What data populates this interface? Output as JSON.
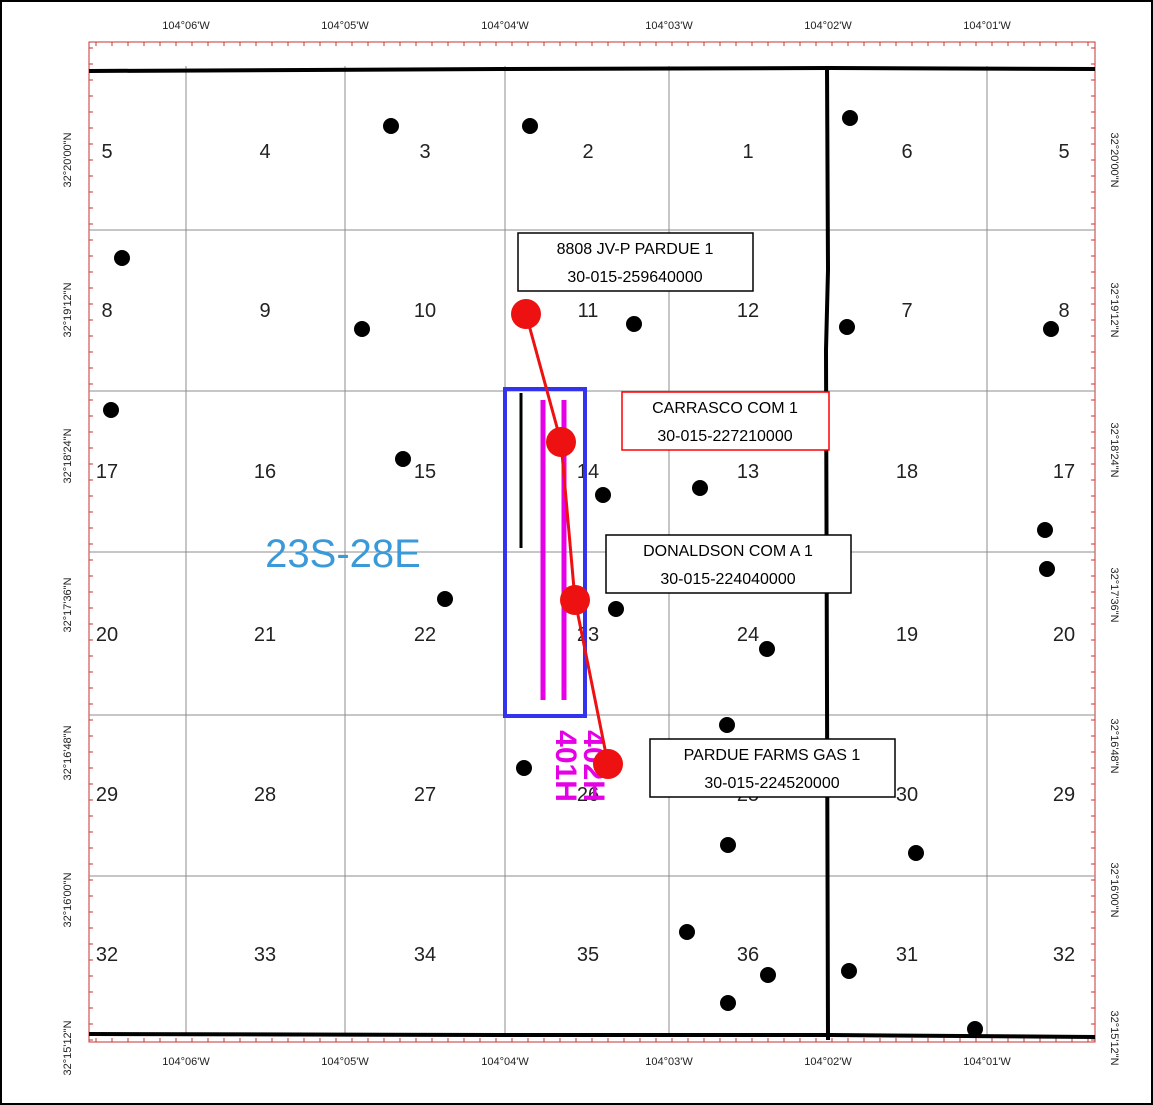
{
  "map": {
    "township_label": "23S-28E",
    "longitude_labels": [
      "104°06'W",
      "104°05'W",
      "104°04'W",
      "104°03'W",
      "104°02'W",
      "104°01'W"
    ],
    "latitude_labels": [
      "32°20'00\"N",
      "32°19'12\"N",
      "32°18'24\"N",
      "32°17'36\"N",
      "32°16'48\"N",
      "32°16'00\"N",
      "32°15'12\"N"
    ],
    "section_numbers": [
      "5",
      "4",
      "3",
      "2",
      "1",
      "6",
      "5",
      "8",
      "9",
      "10",
      "11",
      "12",
      "7",
      "8",
      "17",
      "16",
      "15",
      "14",
      "13",
      "18",
      "17",
      "20",
      "21",
      "22",
      "23",
      "24",
      "19",
      "20",
      "29",
      "28",
      "27",
      "26",
      "25",
      "30",
      "29",
      "32",
      "33",
      "34",
      "35",
      "36",
      "31",
      "32"
    ],
    "lateral_labels": [
      "401H",
      "402H"
    ],
    "wells": [
      {
        "name": "8808 JV-P PARDUE 1",
        "api": "30-015-259640000",
        "box_color": "#000000"
      },
      {
        "name": "CARRASCO COM 1",
        "api": "30-015-227210000",
        "box_color": "#ff0000"
      },
      {
        "name": "DONALDSON COM A 1",
        "api": "30-015-224040000",
        "box_color": "#000000"
      },
      {
        "name": "PARDUE FARMS GAS 1",
        "api": "30-015-224520000",
        "box_color": "#000000"
      }
    ],
    "colors": {
      "township": "#3a9ad9",
      "laterals": "#e600e6",
      "unit_box": "#3333ee",
      "cross_section": "#ee1111",
      "frame": "#c83232"
    }
  }
}
